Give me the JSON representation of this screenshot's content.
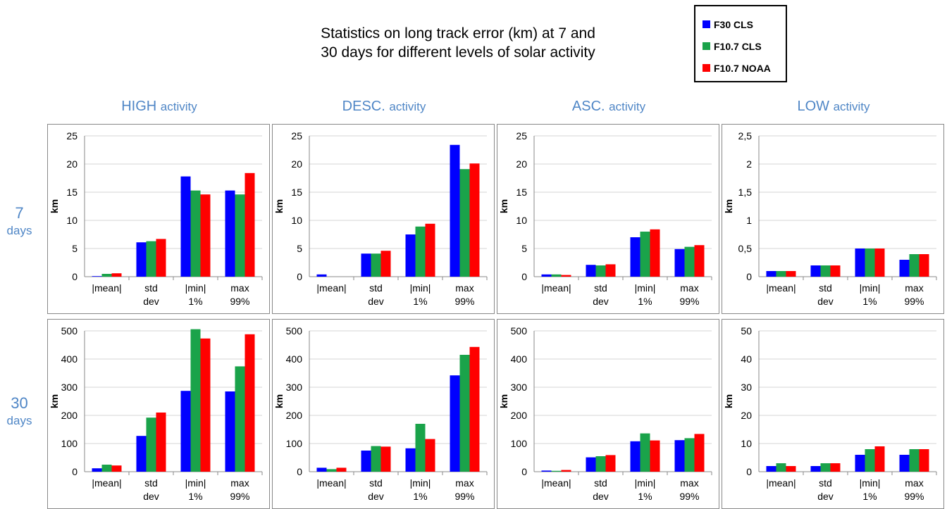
{
  "title_line1": "Statistics on long track error (km) at 7 and",
  "title_line2": "30 days for different levels of solar activity",
  "legend": [
    {
      "label": "F30 CLS",
      "color": "#0000ff"
    },
    {
      "label": "F10.7 CLS",
      "color": "#1aa34a"
    },
    {
      "label": "F10.7 NOAA",
      "color": "#ff0000"
    }
  ],
  "columns": [
    {
      "word": "HIGH",
      "suffix": "activity"
    },
    {
      "word": "DESC.",
      "suffix": "activity"
    },
    {
      "word": "ASC.",
      "suffix": "activity"
    },
    {
      "word": "LOW",
      "suffix": "activity"
    }
  ],
  "rows": [
    {
      "number": "7",
      "unit": "days"
    },
    {
      "number": "30",
      "unit": "days"
    }
  ],
  "chart_data": [
    {
      "type": "bar",
      "ylabel": "km",
      "categories": [
        [
          "|mean|"
        ],
        [
          "std",
          "dev"
        ],
        [
          "|min|",
          "1%"
        ],
        [
          "max",
          "99%"
        ]
      ],
      "yticks": [
        "0",
        "5",
        "10",
        "15",
        "20",
        "25"
      ],
      "ylim": [
        0,
        25
      ],
      "series": [
        {
          "name": "F30 CLS",
          "values": [
            0.1,
            6.1,
            17.8,
            15.3
          ]
        },
        {
          "name": "F10.7 CLS",
          "values": [
            0.5,
            6.3,
            15.3,
            14.6
          ]
        },
        {
          "name": "F10.7 NOAA",
          "values": [
            0.6,
            6.7,
            14.6,
            18.4
          ]
        }
      ]
    },
    {
      "type": "bar",
      "ylabel": "km",
      "categories": [
        [
          "|mean|"
        ],
        [
          "std",
          "dev"
        ],
        [
          "|min|",
          "1%"
        ],
        [
          "max",
          "99%"
        ]
      ],
      "yticks": [
        "0",
        "5",
        "10",
        "15",
        "20",
        "25"
      ],
      "ylim": [
        0,
        25
      ],
      "series": [
        {
          "name": "F30 CLS",
          "values": [
            0.4,
            4.1,
            7.5,
            23.4
          ]
        },
        {
          "name": "F10.7 CLS",
          "values": [
            0,
            4.1,
            8.9,
            19.1
          ]
        },
        {
          "name": "F10.7 NOAA",
          "values": [
            0,
            4.6,
            9.4,
            20.1
          ]
        }
      ]
    },
    {
      "type": "bar",
      "ylabel": "km",
      "categories": [
        [
          "|mean|"
        ],
        [
          "std",
          "dev"
        ],
        [
          "|min|",
          "1%"
        ],
        [
          "max",
          "99%"
        ]
      ],
      "yticks": [
        "0",
        "5",
        "10",
        "15",
        "20",
        "25"
      ],
      "ylim": [
        0,
        25
      ],
      "series": [
        {
          "name": "F30 CLS",
          "values": [
            0.4,
            2.1,
            7.0,
            4.9
          ]
        },
        {
          "name": "F10.7 CLS",
          "values": [
            0.4,
            2.0,
            8.0,
            5.3
          ]
        },
        {
          "name": "F10.7 NOAA",
          "values": [
            0.3,
            2.2,
            8.4,
            5.6
          ]
        }
      ]
    },
    {
      "type": "bar",
      "ylabel": "km",
      "categories": [
        [
          "|mean|"
        ],
        [
          "std",
          "dev"
        ],
        [
          "|min|",
          "1%"
        ],
        [
          "max",
          "99%"
        ]
      ],
      "yticks": [
        "0",
        "0,5",
        "1",
        "1,5",
        "2",
        "2,5"
      ],
      "ylim": [
        0,
        2.5
      ],
      "series": [
        {
          "name": "F30 CLS",
          "values": [
            0.1,
            0.2,
            0.5,
            0.3
          ]
        },
        {
          "name": "F10.7 CLS",
          "values": [
            0.1,
            0.2,
            0.5,
            0.4
          ]
        },
        {
          "name": "F10.7 NOAA",
          "values": [
            0.1,
            0.2,
            0.5,
            0.4
          ]
        }
      ]
    },
    {
      "type": "bar",
      "ylabel": "km",
      "categories": [
        [
          "|mean|"
        ],
        [
          "std",
          "dev"
        ],
        [
          "|min|",
          "1%"
        ],
        [
          "max",
          "99%"
        ]
      ],
      "yticks": [
        "0",
        "100",
        "200",
        "300",
        "400",
        "500"
      ],
      "ylim": [
        0,
        500
      ],
      "series": [
        {
          "name": "F30 CLS",
          "values": [
            12,
            127,
            287,
            285
          ]
        },
        {
          "name": "F10.7 CLS",
          "values": [
            25,
            192,
            506,
            374
          ]
        },
        {
          "name": "F10.7 NOAA",
          "values": [
            22,
            210,
            473,
            488
          ]
        }
      ]
    },
    {
      "type": "bar",
      "ylabel": "km",
      "categories": [
        [
          "|mean|"
        ],
        [
          "std",
          "dev"
        ],
        [
          "|min|",
          "1%"
        ],
        [
          "max",
          "99%"
        ]
      ],
      "yticks": [
        "0",
        "100",
        "200",
        "300",
        "400",
        "500"
      ],
      "ylim": [
        0,
        500
      ],
      "series": [
        {
          "name": "F30 CLS",
          "values": [
            14,
            75,
            83,
            342
          ]
        },
        {
          "name": "F10.7 CLS",
          "values": [
            9,
            91,
            170,
            415
          ]
        },
        {
          "name": "F10.7 NOAA",
          "values": [
            14,
            89,
            116,
            443
          ]
        }
      ]
    },
    {
      "type": "bar",
      "ylabel": "km",
      "categories": [
        [
          "|mean|"
        ],
        [
          "std",
          "dev"
        ],
        [
          "|min|",
          "1%"
        ],
        [
          "max",
          "99%"
        ]
      ],
      "yticks": [
        "0",
        "100",
        "200",
        "300",
        "400",
        "500"
      ],
      "ylim": [
        0,
        500
      ],
      "series": [
        {
          "name": "F30 CLS",
          "values": [
            4,
            51,
            108,
            112
          ]
        },
        {
          "name": "F10.7 CLS",
          "values": [
            3,
            55,
            136,
            119
          ]
        },
        {
          "name": "F10.7 NOAA",
          "values": [
            6,
            59,
            111,
            134
          ]
        }
      ]
    },
    {
      "type": "bar",
      "ylabel": "km",
      "categories": [
        [
          "|mean|"
        ],
        [
          "std",
          "dev"
        ],
        [
          "|min|",
          "1%"
        ],
        [
          "max",
          "99%"
        ]
      ],
      "yticks": [
        "0",
        "10",
        "20",
        "30",
        "40",
        "50"
      ],
      "ylim": [
        0,
        50
      ],
      "series": [
        {
          "name": "F30 CLS",
          "values": [
            2,
            2,
            6,
            6
          ]
        },
        {
          "name": "F10.7 CLS",
          "values": [
            3,
            3,
            8,
            8
          ]
        },
        {
          "name": "F10.7 NOAA",
          "values": [
            2,
            3,
            9,
            8
          ]
        }
      ]
    }
  ]
}
